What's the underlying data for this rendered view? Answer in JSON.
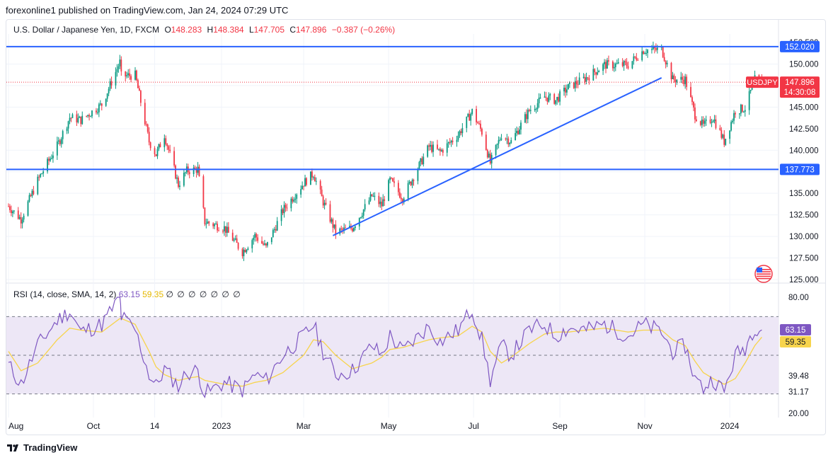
{
  "header": {
    "publisher_line": "forexonline1 published on TradingView.com, Jan 24, 2024 07:29 UTC"
  },
  "legend": {
    "symbol": "U.S. Dollar / Japanese Yen, 1D, FXCM",
    "open_label": "O",
    "open": "148.283",
    "high_label": "H",
    "high": "148.384",
    "low_label": "L",
    "low": "147.705",
    "close_label": "C",
    "close": "147.896",
    "change": "−0.387 (−0.26%)"
  },
  "rsi_legend": {
    "label": "RSI (14, close, SMA, 14, 2)",
    "rsi": "63.15",
    "sma": "59.35",
    "empty_values": "∅ ∅ ∅ ∅ ∅ ∅ ∅"
  },
  "footer": {
    "brand": "TradingView"
  },
  "colors": {
    "up": "#089981",
    "down": "#f23645",
    "line": "#2962ff",
    "rsi": "#7e57c2",
    "rsi_sma": "#f7d44c",
    "rsi_band": "#ede7f6"
  },
  "chart_data": [
    {
      "type": "candlestick",
      "title": "U.S. Dollar / Japanese Yen, 1D, FXCM",
      "symbol": "USDJPY",
      "ylim": [
        125.0,
        152.5
      ],
      "y_ticks": [
        "152.500",
        "150.000",
        "147.500",
        "145.000",
        "142.500",
        "140.000",
        "137.500",
        "135.000",
        "132.500",
        "130.000",
        "127.500",
        "125.000"
      ],
      "x_ticks": [
        "Aug",
        "Oct",
        "14",
        "2023",
        "Mar",
        "May",
        "Jul",
        "Sep",
        "Nov",
        "2024"
      ],
      "horizontal_levels": [
        152.02,
        137.773
      ],
      "level_labels": [
        "152.020",
        "137.773"
      ],
      "trendline": {
        "from": [
          "2023-03-22",
          130.1
        ],
        "to": [
          "2023-11-13",
          148.4
        ]
      },
      "last_price": 147.896,
      "last_price_label": "147.896",
      "countdown": "14:30:08",
      "price_path": [
        [
          "2022-08-01",
          133.5
        ],
        [
          "2022-08-10",
          132.0
        ],
        [
          "2022-08-22",
          136.5
        ],
        [
          "2022-09-05",
          140.5
        ],
        [
          "2022-09-14",
          143.8
        ],
        [
          "2022-09-22",
          143.5
        ],
        [
          "2022-10-07",
          145.3
        ],
        [
          "2022-10-20",
          150.2
        ],
        [
          "2022-10-21",
          148.6
        ],
        [
          "2022-10-31",
          148.7
        ],
        [
          "2022-11-10",
          141.0
        ],
        [
          "2022-11-15",
          139.5
        ],
        [
          "2022-11-21",
          141.8
        ],
        [
          "2022-12-01",
          136.0
        ],
        [
          "2022-12-07",
          137.6
        ],
        [
          "2022-12-15",
          137.8
        ],
        [
          "2022-12-20",
          131.7
        ],
        [
          "2023-01-03",
          131.0
        ],
        [
          "2023-01-16",
          128.2
        ],
        [
          "2023-01-25",
          130.1
        ],
        [
          "2023-02-02",
          128.7
        ],
        [
          "2023-02-14",
          133.0
        ],
        [
          "2023-03-01",
          136.2
        ],
        [
          "2023-03-08",
          137.3
        ],
        [
          "2023-03-15",
          134.0
        ],
        [
          "2023-03-24",
          130.5
        ],
        [
          "2023-04-05",
          131.0
        ],
        [
          "2023-04-19",
          134.7
        ],
        [
          "2023-04-26",
          133.6
        ],
        [
          "2023-05-02",
          136.5
        ],
        [
          "2023-05-11",
          134.5
        ],
        [
          "2023-05-30",
          140.4
        ],
        [
          "2023-06-07",
          139.8
        ],
        [
          "2023-06-20",
          141.8
        ],
        [
          "2023-06-30",
          144.5
        ],
        [
          "2023-07-07",
          142.1
        ],
        [
          "2023-07-13",
          138.5
        ],
        [
          "2023-07-21",
          141.8
        ],
        [
          "2023-07-28",
          141.0
        ],
        [
          "2023-08-10",
          144.6
        ],
        [
          "2023-08-21",
          146.2
        ],
        [
          "2023-08-29",
          145.8
        ],
        [
          "2023-09-07",
          147.3
        ],
        [
          "2023-09-20",
          148.4
        ],
        [
          "2023-10-03",
          149.9
        ],
        [
          "2023-10-20",
          149.9
        ],
        [
          "2023-10-31",
          151.6
        ],
        [
          "2023-11-13",
          151.7
        ],
        [
          "2023-11-21",
          148.2
        ],
        [
          "2023-11-30",
          148.2
        ],
        [
          "2023-12-07",
          144.1
        ],
        [
          "2023-12-13",
          142.8
        ],
        [
          "2023-12-20",
          143.8
        ],
        [
          "2023-12-28",
          141.0
        ],
        [
          "2024-01-05",
          144.6
        ],
        [
          "2024-01-12",
          144.9
        ],
        [
          "2024-01-19",
          148.2
        ],
        [
          "2024-01-24",
          147.9
        ]
      ]
    },
    {
      "type": "line",
      "title": "RSI (14, close, SMA, 14, 2)",
      "ylim": [
        20,
        80
      ],
      "y_ticks": [
        "80.00",
        "39.48",
        "31.17",
        "20.00"
      ],
      "band_levels": [
        70,
        50,
        30
      ],
      "last_values": {
        "rsi": "63.15",
        "sma": "59.35"
      },
      "series": [
        {
          "values": [
            [
              "2022-08-01",
              45
            ],
            [
              "2022-08-10",
              35
            ],
            [
              "2022-08-22",
              55
            ],
            [
              "2022-09-05",
              68
            ],
            [
              "2022-09-14",
              73
            ],
            [
              "2022-09-22",
              62
            ],
            [
              "2022-10-07",
              66
            ],
            [
              "2022-10-20",
              80
            ],
            [
              "2022-10-21",
              70
            ],
            [
              "2022-10-31",
              63
            ],
            [
              "2022-11-10",
              40
            ],
            [
              "2022-11-15",
              34
            ],
            [
              "2022-11-21",
              43
            ],
            [
              "2022-12-01",
              34
            ],
            [
              "2022-12-07",
              41
            ],
            [
              "2022-12-15",
              42
            ],
            [
              "2022-12-20",
              30
            ],
            [
              "2023-01-03",
              36
            ],
            [
              "2023-01-16",
              32
            ],
            [
              "2023-01-25",
              40
            ],
            [
              "2023-02-02",
              37
            ],
            [
              "2023-02-14",
              50
            ],
            [
              "2023-03-01",
              60
            ],
            [
              "2023-03-08",
              66
            ],
            [
              "2023-03-15",
              52
            ],
            [
              "2023-03-24",
              40
            ],
            [
              "2023-04-05",
              42
            ],
            [
              "2023-04-19",
              55
            ],
            [
              "2023-04-26",
              50
            ],
            [
              "2023-05-02",
              60
            ],
            [
              "2023-05-11",
              52
            ],
            [
              "2023-05-30",
              65
            ],
            [
              "2023-06-07",
              57
            ],
            [
              "2023-06-20",
              63
            ],
            [
              "2023-06-30",
              74
            ],
            [
              "2023-07-07",
              58
            ],
            [
              "2023-07-13",
              37
            ],
            [
              "2023-07-21",
              55
            ],
            [
              "2023-07-28",
              50
            ],
            [
              "2023-08-10",
              63
            ],
            [
              "2023-08-21",
              66
            ],
            [
              "2023-08-29",
              60
            ],
            [
              "2023-09-07",
              64
            ],
            [
              "2023-09-20",
              63
            ],
            [
              "2023-10-03",
              66
            ],
            [
              "2023-10-20",
              60
            ],
            [
              "2023-10-31",
              66
            ],
            [
              "2023-11-13",
              62
            ],
            [
              "2023-11-21",
              52
            ],
            [
              "2023-11-30",
              55
            ],
            [
              "2023-12-07",
              38
            ],
            [
              "2023-12-13",
              33
            ],
            [
              "2023-12-20",
              38
            ],
            [
              "2023-12-28",
              31
            ],
            [
              "2024-01-05",
              50
            ],
            [
              "2024-01-12",
              54
            ],
            [
              "2024-01-19",
              65
            ],
            [
              "2024-01-24",
              63.15
            ]
          ]
        },
        {
          "values": [
            [
              "2022-08-01",
              52
            ],
            [
              "2022-08-10",
              42
            ],
            [
              "2022-08-22",
              46
            ],
            [
              "2022-09-05",
              58
            ],
            [
              "2022-09-14",
              64
            ],
            [
              "2022-09-22",
              63
            ],
            [
              "2022-10-07",
              62
            ],
            [
              "2022-10-20",
              69
            ],
            [
              "2022-10-21",
              69
            ],
            [
              "2022-10-31",
              66
            ],
            [
              "2022-11-10",
              52
            ],
            [
              "2022-11-15",
              44
            ],
            [
              "2022-11-21",
              40
            ],
            [
              "2022-12-01",
              37
            ],
            [
              "2022-12-07",
              38
            ],
            [
              "2022-12-15",
              39
            ],
            [
              "2022-12-20",
              37
            ],
            [
              "2023-01-03",
              35
            ],
            [
              "2023-01-16",
              34
            ],
            [
              "2023-01-25",
              36
            ],
            [
              "2023-02-02",
              37
            ],
            [
              "2023-02-14",
              41
            ],
            [
              "2023-03-01",
              50
            ],
            [
              "2023-03-08",
              58
            ],
            [
              "2023-03-15",
              57
            ],
            [
              "2023-03-24",
              50
            ],
            [
              "2023-04-05",
              43
            ],
            [
              "2023-04-19",
              46
            ],
            [
              "2023-04-26",
              49
            ],
            [
              "2023-05-02",
              53
            ],
            [
              "2023-05-11",
              54
            ],
            [
              "2023-05-30",
              58
            ],
            [
              "2023-06-07",
              59
            ],
            [
              "2023-06-20",
              60
            ],
            [
              "2023-06-30",
              65
            ],
            [
              "2023-07-07",
              62
            ],
            [
              "2023-07-13",
              52
            ],
            [
              "2023-07-21",
              46
            ],
            [
              "2023-07-28",
              49
            ],
            [
              "2023-08-10",
              56
            ],
            [
              "2023-08-21",
              61
            ],
            [
              "2023-08-29",
              62
            ],
            [
              "2023-09-07",
              62
            ],
            [
              "2023-09-20",
              63
            ],
            [
              "2023-10-03",
              64
            ],
            [
              "2023-10-20",
              62
            ],
            [
              "2023-10-31",
              63
            ],
            [
              "2023-11-13",
              63
            ],
            [
              "2023-11-21",
              58
            ],
            [
              "2023-11-30",
              55
            ],
            [
              "2023-12-07",
              47
            ],
            [
              "2023-12-13",
              41
            ],
            [
              "2023-12-20",
              38
            ],
            [
              "2023-12-28",
              35
            ],
            [
              "2024-01-05",
              38
            ],
            [
              "2024-01-12",
              46
            ],
            [
              "2024-01-19",
              55
            ],
            [
              "2024-01-24",
              59.35
            ]
          ]
        }
      ]
    }
  ]
}
